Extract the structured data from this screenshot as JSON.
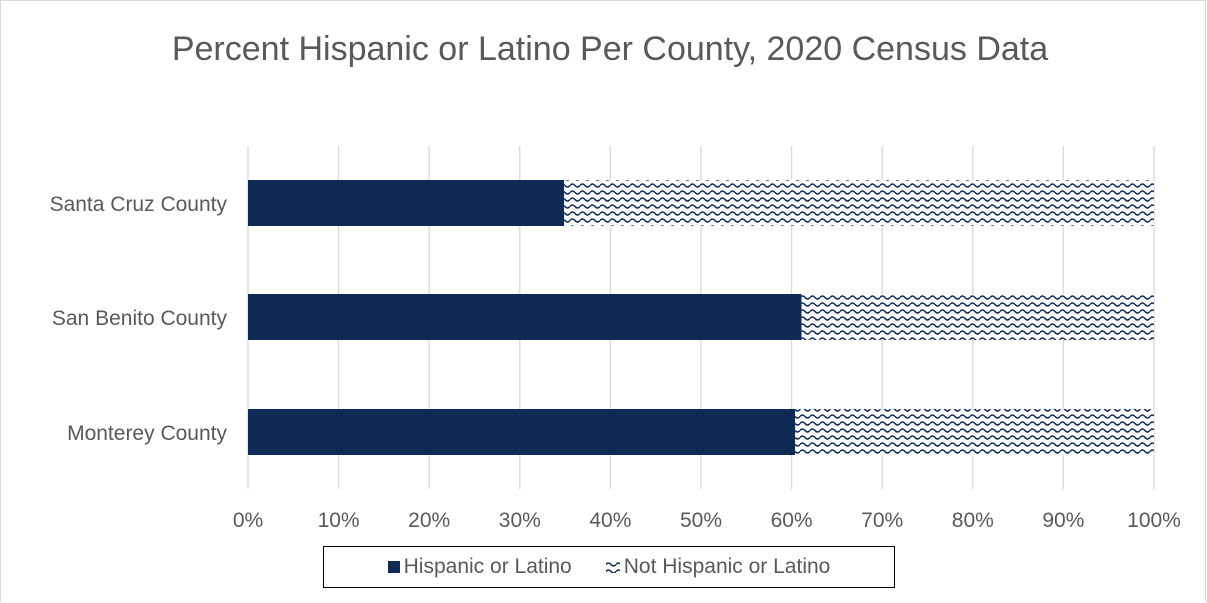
{
  "colors": {
    "hispanic": "#0f2a55",
    "not_hispanic_fill": "#ffffff",
    "not_hispanic_pattern": "#0f2a55",
    "gridline": "#d9d9d9",
    "text": "#595959"
  },
  "chart_data": {
    "type": "bar",
    "orientation": "horizontal",
    "stacked": "100%",
    "title": "Percent Hispanic or Latino Per County, 2020 Census Data",
    "categories": [
      "Santa Cruz County",
      "San Benito County",
      "Monterey County"
    ],
    "series": [
      {
        "name": "Hispanic or Latino",
        "values": [
          34.9,
          61.1,
          60.4
        ]
      },
      {
        "name": "Not Hispanic or Latino",
        "values": [
          65.1,
          38.9,
          39.6
        ]
      }
    ],
    "xlim": [
      0,
      100
    ],
    "x_ticks": [
      "0%",
      "10%",
      "20%",
      "30%",
      "40%",
      "50%",
      "60%",
      "70%",
      "80%",
      "90%",
      "100%"
    ],
    "grid": true,
    "legend_position": "bottom"
  }
}
